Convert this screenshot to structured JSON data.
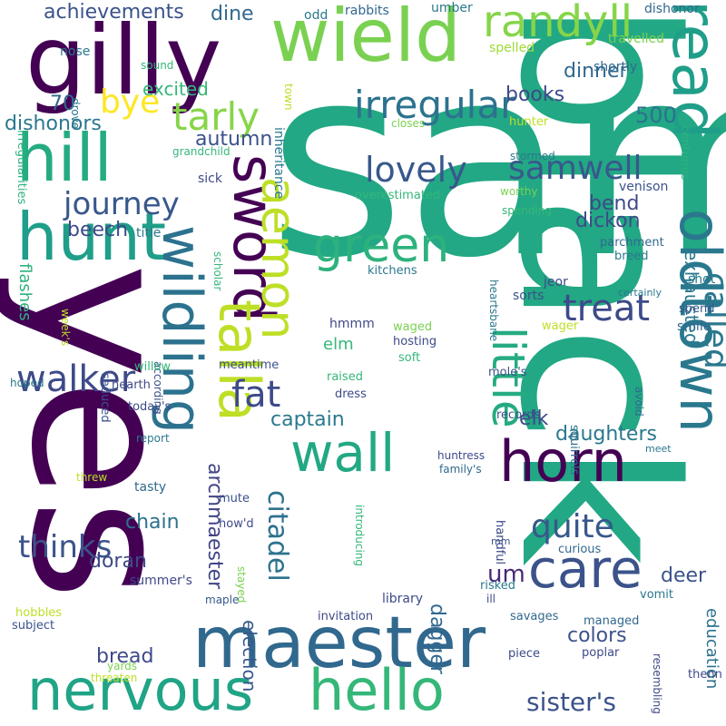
{
  "words": [
    {
      "text": "sam",
      "color": "#22a884"
    },
    {
      "text": "black",
      "color": "#22a884"
    },
    {
      "text": "yes",
      "color": "#440154"
    },
    {
      "text": "gilly",
      "color": "#440154"
    },
    {
      "text": "wield",
      "color": "#7ad151"
    },
    {
      "text": "maester",
      "color": "#31688e"
    },
    {
      "text": "nervous",
      "color": "#20a486"
    },
    {
      "text": "hello",
      "color": "#35b779"
    },
    {
      "text": "hunt",
      "color": "#1f9e89"
    },
    {
      "text": "hill",
      "color": "#25ab82"
    },
    {
      "text": "sword",
      "color": "#440154"
    },
    {
      "text": "wildling",
      "color": "#2c728e"
    },
    {
      "text": "talla",
      "color": "#bddf26"
    },
    {
      "text": "green",
      "color": "#2db27d"
    },
    {
      "text": "aemon",
      "color": "#bddf26"
    },
    {
      "text": "read",
      "color": "#1f9e89"
    },
    {
      "text": "oldtown",
      "color": "#2a788e"
    },
    {
      "text": "horn",
      "color": "#440154"
    },
    {
      "text": "care",
      "color": "#3b528b"
    },
    {
      "text": "wall",
      "color": "#22a884"
    },
    {
      "text": "little",
      "color": "#25ab82"
    },
    {
      "text": "randyll",
      "color": "#86d549"
    },
    {
      "text": "irregular",
      "color": "#2c728e"
    },
    {
      "text": "tarly",
      "color": "#86d549"
    },
    {
      "text": "lovely",
      "color": "#38588c"
    },
    {
      "text": "samwell",
      "color": "#38588c"
    },
    {
      "text": "journey",
      "color": "#38588c"
    },
    {
      "text": "treat",
      "color": "#3e4a89"
    },
    {
      "text": "called",
      "color": "#2a788e"
    },
    {
      "text": "fat",
      "color": "#3e4a89"
    },
    {
      "text": "walker",
      "color": "#3e4a89"
    },
    {
      "text": "thinks",
      "color": "#3b528b"
    },
    {
      "text": "citadel",
      "color": "#2c728e"
    },
    {
      "text": "quite",
      "color": "#38588c"
    },
    {
      "text": "sister's",
      "color": "#3b528b"
    },
    {
      "text": "achievements",
      "color": "#3b528b"
    },
    {
      "text": "bye",
      "color": "#fde725"
    },
    {
      "text": "um",
      "color": "#482878"
    },
    {
      "text": "captain",
      "color": "#2a788e"
    },
    {
      "text": "archmaester",
      "color": "#414487"
    },
    {
      "text": "chain",
      "color": "#2c728e"
    },
    {
      "text": "doran",
      "color": "#3e4a89"
    },
    {
      "text": "daughters",
      "color": "#2a788e"
    },
    {
      "text": "colors",
      "color": "#3b528b"
    },
    {
      "text": "bread",
      "color": "#3e4a89"
    },
    {
      "text": "education",
      "color": "#2c728e"
    },
    {
      "text": "exhausted",
      "color": "#2a788e"
    },
    {
      "text": "books",
      "color": "#3e4a89"
    },
    {
      "text": "dinner",
      "color": "#31688e"
    },
    {
      "text": "excited",
      "color": "#35b779"
    },
    {
      "text": "70",
      "color": "#31688e"
    },
    {
      "text": "500",
      "color": "#2c728e"
    },
    {
      "text": "autumn",
      "color": "#3b528b"
    },
    {
      "text": "dishonors",
      "color": "#2a788e"
    },
    {
      "text": "dine",
      "color": "#31688e"
    },
    {
      "text": "bend",
      "color": "#3e4a89"
    },
    {
      "text": "dickon",
      "color": "#3e4a89"
    },
    {
      "text": "beech",
      "color": "#3e4a89"
    },
    {
      "text": "elk",
      "color": "#3e4a89"
    },
    {
      "text": "elm",
      "color": "#35b779"
    },
    {
      "text": "deer",
      "color": "#3b528b"
    },
    {
      "text": "dagger",
      "color": "#31688e"
    },
    {
      "text": "election",
      "color": "#38588c"
    },
    {
      "text": "flashes",
      "color": "#2db27d"
    },
    {
      "text": "irregularities",
      "color": "#2db27d"
    },
    {
      "text": "odd",
      "color": "#2a788e"
    },
    {
      "text": "rabbits",
      "color": "#31688e"
    },
    {
      "text": "umber",
      "color": "#2a788e"
    },
    {
      "text": "dishonor",
      "color": "#31688e"
    },
    {
      "text": "nose",
      "color": "#2a788e"
    },
    {
      "text": "drove",
      "color": "#2a788e"
    },
    {
      "text": "inheritance",
      "color": "#2a788e"
    },
    {
      "text": "town",
      "color": "#bddf26"
    },
    {
      "text": "spelled",
      "color": "#a0da39"
    },
    {
      "text": "travelled",
      "color": "#7ad151"
    },
    {
      "text": "shortly",
      "color": "#31688e"
    },
    {
      "text": "centuries",
      "color": "#2db27d"
    },
    {
      "text": "sound",
      "color": "#35b779"
    },
    {
      "text": "closes",
      "color": "#7ad151"
    },
    {
      "text": "hunter",
      "color": "#bddf26"
    },
    {
      "text": "grandchild",
      "color": "#35b779"
    },
    {
      "text": "stormed",
      "color": "#2a788e"
    },
    {
      "text": "sick",
      "color": "#3e4a89"
    },
    {
      "text": "worthy",
      "color": "#7ad151"
    },
    {
      "text": "venison",
      "color": "#3b528b"
    },
    {
      "text": "overestimated",
      "color": "#35b779"
    },
    {
      "text": "spending",
      "color": "#35b779"
    },
    {
      "text": "title",
      "color": "#2a788e"
    },
    {
      "text": "scholar",
      "color": "#35b779"
    },
    {
      "text": "parchment",
      "color": "#31688e"
    },
    {
      "text": "breed",
      "color": "#2a788e"
    },
    {
      "text": "heartsbane",
      "color": "#2a788e"
    },
    {
      "text": "week's",
      "color": "#bddf26"
    },
    {
      "text": "kitchens",
      "color": "#2a788e"
    },
    {
      "text": "jeor",
      "color": "#3e4a89"
    },
    {
      "text": "shot",
      "color": "#2a788e"
    },
    {
      "text": "sorts",
      "color": "#3b528b"
    },
    {
      "text": "certainly",
      "color": "#2a788e"
    },
    {
      "text": "spend",
      "color": "#38588c"
    },
    {
      "text": "smile",
      "color": "#31688e"
    },
    {
      "text": "hmmm",
      "color": "#3e4a89"
    },
    {
      "text": "waged",
      "color": "#7ad151"
    },
    {
      "text": "hosting",
      "color": "#3e4a89"
    },
    {
      "text": "wager",
      "color": "#bddf26"
    },
    {
      "text": "according",
      "color": "#3b528b"
    },
    {
      "text": "seduced",
      "color": "#3b528b"
    },
    {
      "text": "willow",
      "color": "#35b779"
    },
    {
      "text": "meantime",
      "color": "#3b528b"
    },
    {
      "text": "soft",
      "color": "#35b779"
    },
    {
      "text": "hoped",
      "color": "#2a788e"
    },
    {
      "text": "hearth",
      "color": "#3e4a89"
    },
    {
      "text": "raised",
      "color": "#35b779"
    },
    {
      "text": "mole's",
      "color": "#3b528b"
    },
    {
      "text": "squirrels",
      "color": "#2c728e"
    },
    {
      "text": "avoid",
      "color": "#31688e"
    },
    {
      "text": "today's",
      "color": "#3e4a89"
    },
    {
      "text": "dress",
      "color": "#3e4a89"
    },
    {
      "text": "records",
      "color": "#3b528b"
    },
    {
      "text": "report",
      "color": "#2a788e"
    },
    {
      "text": "huntress",
      "color": "#3e4a89"
    },
    {
      "text": "meet",
      "color": "#2a788e"
    },
    {
      "text": "family's",
      "color": "#31688e"
    },
    {
      "text": "threw",
      "color": "#bddf26"
    },
    {
      "text": "tasty",
      "color": "#31688e"
    },
    {
      "text": "introducing",
      "color": "#35b779"
    },
    {
      "text": "mute",
      "color": "#3b528b"
    },
    {
      "text": "handful",
      "color": "#3e4a89"
    },
    {
      "text": "how'd",
      "color": "#3e4a89"
    },
    {
      "text": "mm",
      "color": "#3b528b"
    },
    {
      "text": "curious",
      "color": "#31688e"
    },
    {
      "text": "stayed",
      "color": "#7ad151"
    },
    {
      "text": "summer's",
      "color": "#3e4a89"
    },
    {
      "text": "risked",
      "color": "#2a788e"
    },
    {
      "text": "ill",
      "color": "#3e4a89"
    },
    {
      "text": "vomit",
      "color": "#2a788e"
    },
    {
      "text": "maple",
      "color": "#38588c"
    },
    {
      "text": "library",
      "color": "#3e4a89"
    },
    {
      "text": "hobbles",
      "color": "#bddf26"
    },
    {
      "text": "savages",
      "color": "#31688e"
    },
    {
      "text": "invitation",
      "color": "#3e4a89"
    },
    {
      "text": "subject",
      "color": "#3b528b"
    },
    {
      "text": "managed",
      "color": "#31688e"
    },
    {
      "text": "poplar",
      "color": "#3e4a89"
    },
    {
      "text": "yards",
      "color": "#7ad151"
    },
    {
      "text": "piece",
      "color": "#3e4a89"
    },
    {
      "text": "resembling",
      "color": "#3e4a89"
    },
    {
      "text": "threaten",
      "color": "#bddf26"
    },
    {
      "text": "thenn",
      "color": "#3e4a89"
    }
  ]
}
